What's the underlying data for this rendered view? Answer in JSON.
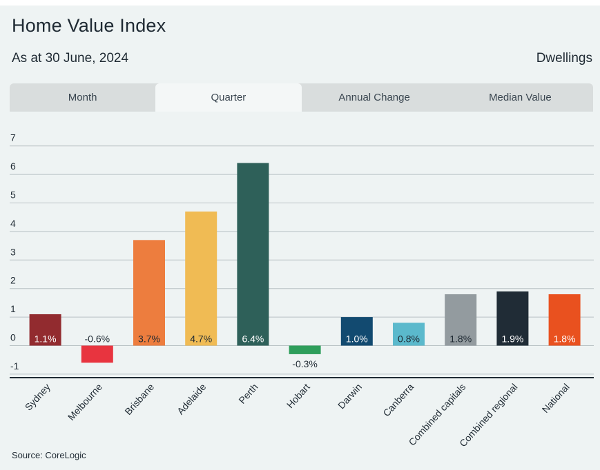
{
  "header": {
    "title": "Home Value Index",
    "subtitle": "As at 30 June, 2024",
    "segment": "Dwellings"
  },
  "tabs": [
    {
      "label": "Month",
      "active": false
    },
    {
      "label": "Quarter",
      "active": true
    },
    {
      "label": "Annual Change",
      "active": false
    },
    {
      "label": "Median Value",
      "active": false
    }
  ],
  "footer": {
    "source": "Source: CoreLogic"
  },
  "chart_data": {
    "type": "bar",
    "categories": [
      "Sydney",
      "Melbourne",
      "Brisbane",
      "Adelaide",
      "Perth",
      "Hobart",
      "Darwin",
      "Canberra",
      "Combined capitals",
      "Combined regional",
      "National"
    ],
    "values": [
      1.1,
      -0.6,
      3.7,
      4.7,
      6.4,
      -0.3,
      1.0,
      0.8,
      1.8,
      1.9,
      1.8
    ],
    "labels": [
      "1.1%",
      "-0.6%",
      "3.7%",
      "4.7%",
      "6.4%",
      "-0.3%",
      "1.0%",
      "0.8%",
      "1.8%",
      "1.9%",
      "1.8%"
    ],
    "colors": [
      "#922b2f",
      "#e8343f",
      "#ed7d3e",
      "#f0bb54",
      "#2e6059",
      "#2e9e5b",
      "#124a70",
      "#5bb9cc",
      "#939b9f",
      "#202c36",
      "#e9511f"
    ],
    "label_colors": [
      "#ffffff",
      "#1f2a33",
      "#1f2a33",
      "#1f2a33",
      "#ffffff",
      "#1f2a33",
      "#ffffff",
      "#1f2a33",
      "#1f2a33",
      "#ffffff",
      "#ffffff"
    ],
    "yticks": [
      -1,
      0,
      1,
      2,
      3,
      4,
      5,
      6,
      7
    ],
    "ylim": [
      -1,
      7
    ],
    "grid": true,
    "legend": false
  }
}
